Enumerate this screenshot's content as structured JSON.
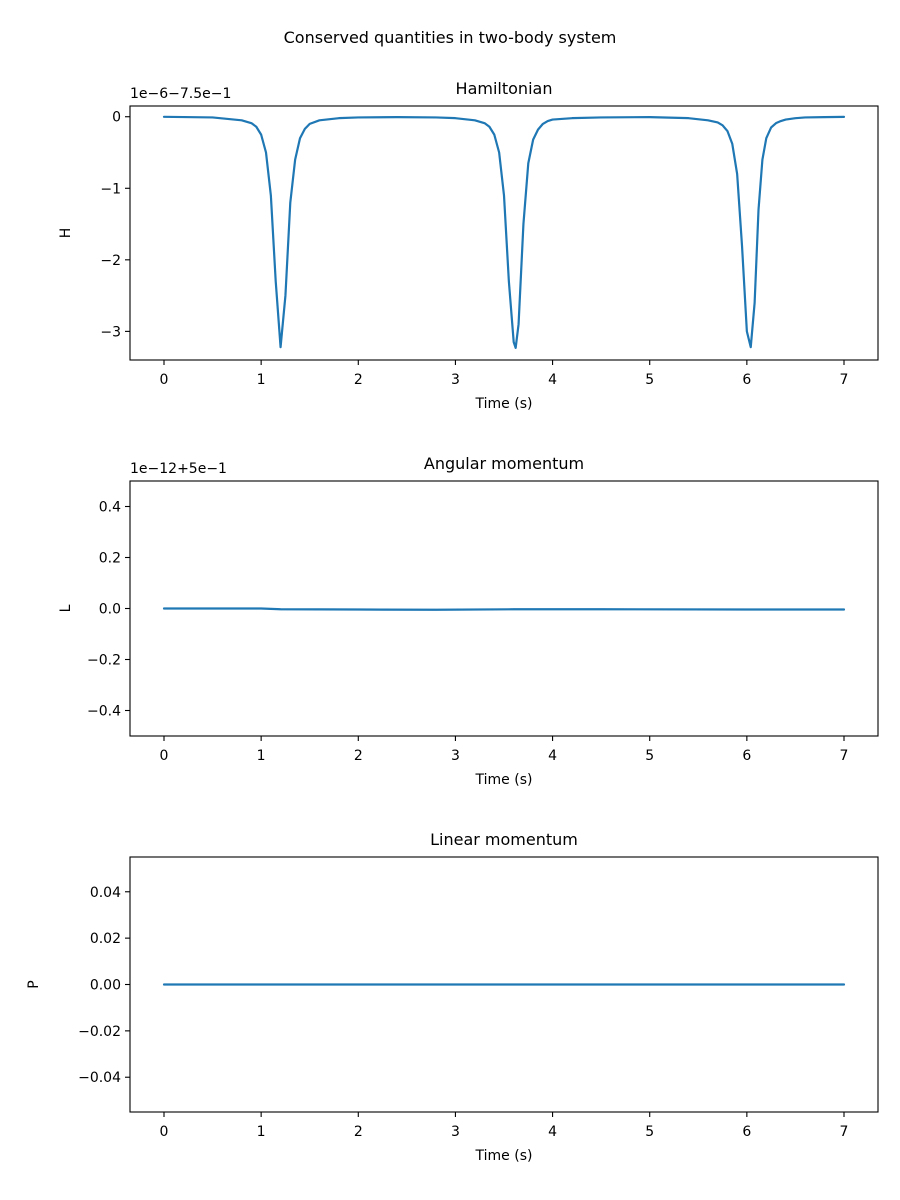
{
  "figure": {
    "suptitle": "Conserved quantities in two-body system"
  },
  "colors": {
    "line": "#1f77b4",
    "background": "#ffffff",
    "axes": "#000000"
  },
  "chart_data": [
    {
      "type": "line",
      "title": "Hamiltonian",
      "xlabel": "Time (s)",
      "ylabel": "H",
      "offset_text": "1e−6−7.5e−1",
      "xlim": [
        -0.35,
        7.35
      ],
      "ylim": [
        -3.4,
        0.15
      ],
      "xticks": [
        0,
        1,
        2,
        3,
        4,
        5,
        6,
        7
      ],
      "xtick_labels": [
        "0",
        "1",
        "2",
        "3",
        "4",
        "5",
        "6",
        "7"
      ],
      "yticks": [
        0,
        -1,
        -2,
        -3
      ],
      "ytick_labels": [
        "0",
        "−1",
        "−2",
        "−3"
      ],
      "grid": false,
      "series": [
        {
          "x": [
            0,
            0.5,
            0.8,
            0.9,
            0.95,
            1.0,
            1.05,
            1.1,
            1.15,
            1.2,
            1.25,
            1.3,
            1.35,
            1.4,
            1.45,
            1.5,
            1.6,
            1.8,
            2.0,
            2.4,
            2.8,
            3.0,
            3.2,
            3.3,
            3.35,
            3.4,
            3.45,
            3.5,
            3.55,
            3.6,
            3.62,
            3.65,
            3.7,
            3.75,
            3.8,
            3.85,
            3.9,
            3.95,
            4.0,
            4.2,
            4.5,
            5.0,
            5.4,
            5.6,
            5.7,
            5.75,
            5.8,
            5.85,
            5.9,
            5.95,
            6.0,
            6.04,
            6.08,
            6.12,
            6.16,
            6.2,
            6.25,
            6.3,
            6.35,
            6.4,
            6.5,
            6.6,
            6.8,
            7.0
          ],
          "y": [
            -0.001,
            -0.01,
            -0.05,
            -0.09,
            -0.14,
            -0.25,
            -0.5,
            -1.1,
            -2.3,
            -3.22,
            -2.5,
            -1.2,
            -0.6,
            -0.3,
            -0.17,
            -0.1,
            -0.05,
            -0.02,
            -0.01,
            -0.005,
            -0.01,
            -0.02,
            -0.05,
            -0.09,
            -0.14,
            -0.25,
            -0.5,
            -1.1,
            -2.3,
            -3.15,
            -3.23,
            -2.9,
            -1.5,
            -0.65,
            -0.32,
            -0.18,
            -0.1,
            -0.06,
            -0.04,
            -0.02,
            -0.01,
            -0.005,
            -0.02,
            -0.05,
            -0.08,
            -0.12,
            -0.2,
            -0.38,
            -0.8,
            -1.8,
            -3.0,
            -3.22,
            -2.6,
            -1.3,
            -0.6,
            -0.3,
            -0.15,
            -0.09,
            -0.06,
            -0.04,
            -0.02,
            -0.01,
            -0.005,
            -0.002
          ]
        }
      ]
    },
    {
      "type": "line",
      "title": "Angular momentum",
      "xlabel": "Time (s)",
      "ylabel": "L",
      "offset_text": "1e−12+5e−1",
      "xlim": [
        -0.35,
        7.35
      ],
      "ylim": [
        -0.5,
        0.5
      ],
      "xticks": [
        0,
        1,
        2,
        3,
        4,
        5,
        6,
        7
      ],
      "xtick_labels": [
        "0",
        "1",
        "2",
        "3",
        "4",
        "5",
        "6",
        "7"
      ],
      "yticks": [
        0.4,
        0.2,
        0.0,
        -0.2,
        -0.4
      ],
      "ytick_labels": [
        "0.4",
        "0.2",
        "0.0",
        "−0.2",
        "−0.4"
      ],
      "grid": false,
      "series": [
        {
          "x": [
            0,
            1.0,
            1.2,
            2.0,
            2.8,
            3.6,
            4.5,
            6.0,
            7.0
          ],
          "y": [
            0.0,
            0.0,
            -0.003,
            -0.004,
            -0.005,
            -0.003,
            -0.003,
            -0.004,
            -0.004
          ]
        }
      ]
    },
    {
      "type": "line",
      "title": "Linear momentum",
      "xlabel": "Time (s)",
      "ylabel": "P",
      "offset_text": "",
      "xlim": [
        -0.35,
        7.35
      ],
      "ylim": [
        -0.055,
        0.055
      ],
      "xticks": [
        0,
        1,
        2,
        3,
        4,
        5,
        6,
        7
      ],
      "xtick_labels": [
        "0",
        "1",
        "2",
        "3",
        "4",
        "5",
        "6",
        "7"
      ],
      "yticks": [
        0.04,
        0.02,
        0.0,
        -0.02,
        -0.04
      ],
      "ytick_labels": [
        "0.04",
        "0.02",
        "0.00",
        "−0.02",
        "−0.04"
      ],
      "grid": false,
      "series": [
        {
          "x": [
            0,
            7
          ],
          "y": [
            0.0,
            0.0
          ]
        }
      ]
    }
  ]
}
